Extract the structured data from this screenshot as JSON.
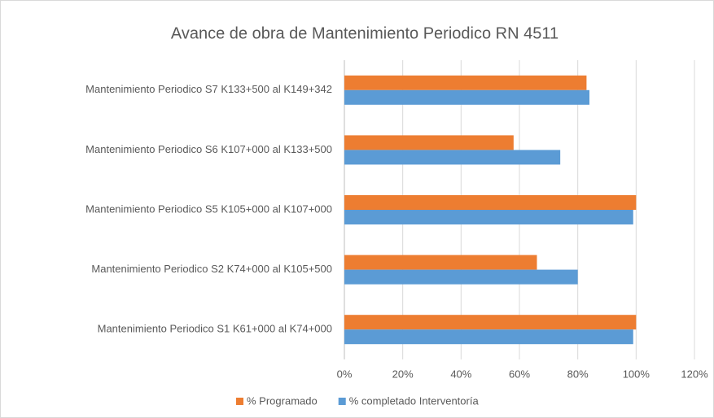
{
  "chart_data": {
    "type": "barh",
    "title": "Avance de obra de Mantenimiento Periodico  RN 4511",
    "categories": [
      "Mantenimiento Periodico S1 K61+000 al K74+000",
      "Mantenimiento Periodico S2 K74+000 al K105+500",
      "Mantenimiento Periodico S5 K105+000 al K107+000",
      "Mantenimiento Periodico S6 K107+000 al K133+500",
      "Mantenimiento Periodico S7 K133+500 al K149+342"
    ],
    "series": [
      {
        "name": "% Programado",
        "color": "#ed7d31",
        "values": [
          100,
          66,
          100,
          58,
          83
        ]
      },
      {
        "name": "% completado Interventoría",
        "color": "#5b9bd5",
        "values": [
          99,
          80,
          99,
          74,
          84
        ]
      }
    ],
    "xlim": [
      0,
      120
    ],
    "xticks": [
      {
        "value": 0,
        "label": "0%"
      },
      {
        "value": 20,
        "label": "20%"
      },
      {
        "value": 40,
        "label": "40%"
      },
      {
        "value": 60,
        "label": "60%"
      },
      {
        "value": 80,
        "label": "80%"
      },
      {
        "value": 100,
        "label": "100%"
      },
      {
        "value": 120,
        "label": "120%"
      }
    ],
    "grid": true,
    "legend": "bottom"
  }
}
